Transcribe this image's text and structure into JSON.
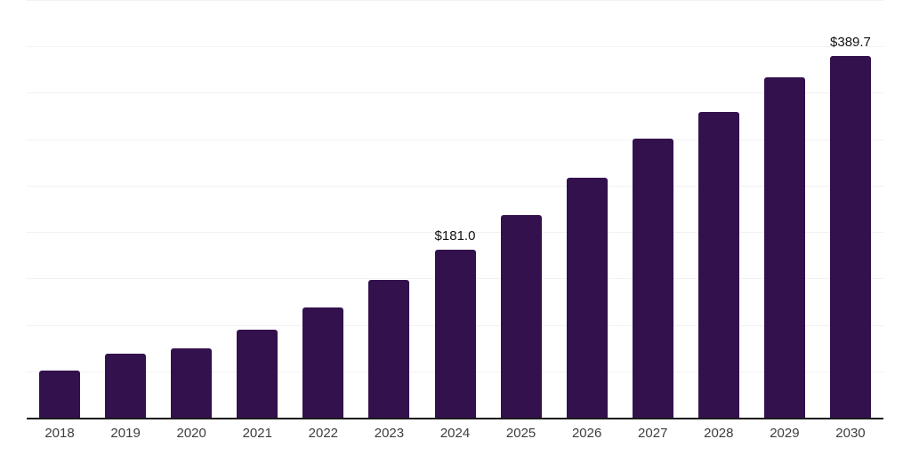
{
  "chart_data": {
    "type": "bar",
    "categories": [
      "2018",
      "2019",
      "2020",
      "2021",
      "2022",
      "2023",
      "2024",
      "2025",
      "2026",
      "2027",
      "2028",
      "2029",
      "2030"
    ],
    "values": [
      51.0,
      68.9,
      74.5,
      95.0,
      118.9,
      148.5,
      181.0,
      218.7,
      258.3,
      300.3,
      329.3,
      366.5,
      389.7
    ],
    "data_labels": {
      "2024": "$181.0",
      "2030": "$389.7"
    },
    "title": "",
    "xlabel": "",
    "ylabel": "",
    "ylim": [
      0,
      450
    ],
    "gridline_step": 50,
    "grid": "horizontal-only",
    "legend": "none",
    "y_axis_labels_visible": false,
    "colors": {
      "bar": "#33114d",
      "axis_line": "#1a1a1a",
      "gridline": "#f2f2f2",
      "tick_label": "#3d3d3d",
      "value_label": "#111111",
      "background": "#ffffff"
    }
  }
}
